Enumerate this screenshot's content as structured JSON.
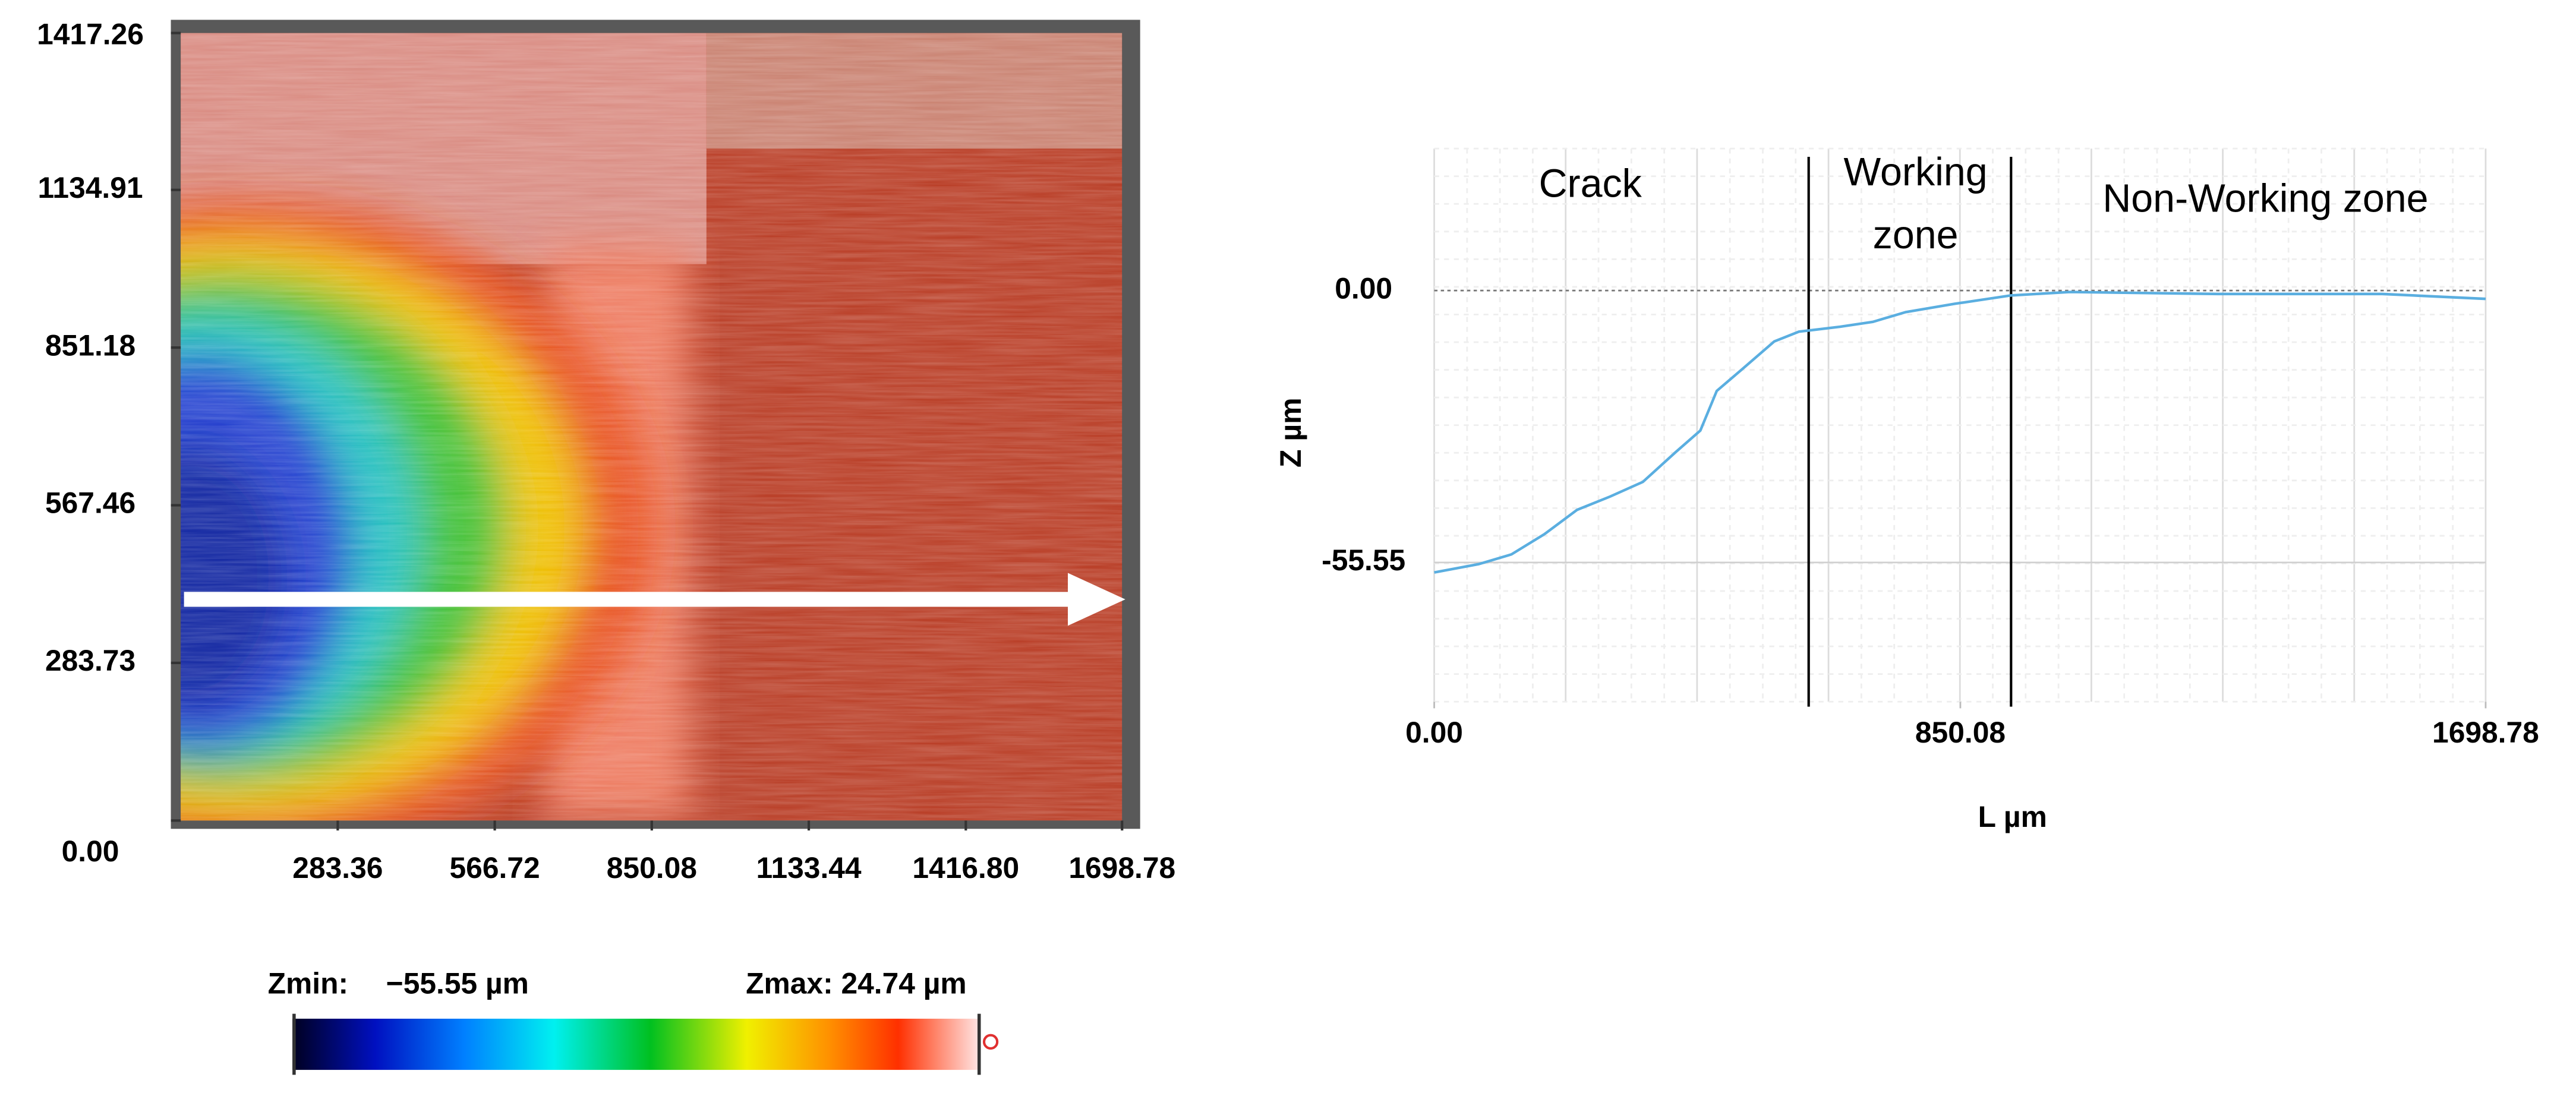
{
  "chart_data": [
    {
      "type": "image",
      "xlim": [
        0,
        1698.78
      ],
      "ylim": [
        0,
        1417.26
      ],
      "xticks": [
        283.36,
        566.72,
        850.08,
        1133.44,
        {
          "value": 1416.8,
          "label": "1416.80"
        },
        1698.78
      ],
      "yticks": [
        {
          "value": 0,
          "label": "0.00"
        },
        283.73,
        567.46,
        851.18,
        1134.91,
        1417.26
      ],
      "colorbar": {
        "zmin_label": "Zmin:",
        "zmin": "−55.55 µm",
        "zmax": "Zmax: 24.74 µm"
      }
    },
    {
      "type": "line",
      "xlabel": "L µm",
      "ylabel": "Z µm",
      "xlim": [
        0,
        1698.78
      ],
      "ylim": [
        -84,
        29
      ],
      "xticks": [
        {
          "value": 0,
          "label": "0.00"
        },
        850.08,
        1698.78
      ],
      "yticks": [
        -55.55,
        {
          "value": 0,
          "label": "0.00"
        }
      ],
      "zero_line": true,
      "vlines": [
        605,
        932
      ],
      "annotations": [
        [
          "Crack"
        ],
        [
          "Working",
          "zone"
        ],
        [
          "Non-Working zone"
        ]
      ],
      "series": [
        {
          "color": "#5aaee0",
          "x": [
            0,
            71.7,
            124.8,
            177.8,
            230.9,
            284,
            337.1,
            390.2,
            430,
            456.5,
            496.4,
            549.4,
            589.3,
            655.6,
            708.7,
            761.8,
            841.4,
            931.7,
            1027.2,
            1266.1,
            1531.6,
            1698.78
          ],
          "values": [
            -57.6,
            -55.9,
            -53.9,
            -49.8,
            -44.8,
            -42.1,
            -39.1,
            -33,
            -28.6,
            -20.5,
            -16.2,
            -10.4,
            -8.4,
            -7.4,
            -6.4,
            -4.4,
            -2.7,
            -1,
            -0.3,
            -0.7,
            -0.7,
            -1.7
          ]
        }
      ]
    }
  ]
}
